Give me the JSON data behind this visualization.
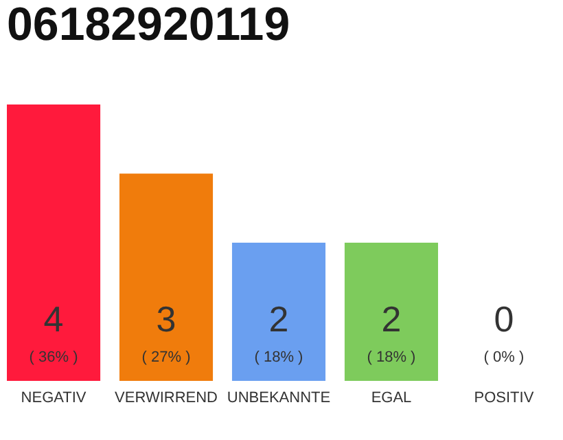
{
  "chart_data": {
    "type": "bar",
    "title": "06182920119",
    "categories": [
      "NEGATIV",
      "VERWIRREND",
      "UNBEKANNTE",
      "EGAL",
      "POSITIV"
    ],
    "values": [
      4,
      3,
      2,
      2,
      0
    ],
    "colors": [
      "#ff1a3c",
      "#f07c0c",
      "#6a9ff0",
      "#7ecb5c",
      "#cccccc"
    ],
    "data_labels": true,
    "tick_labels": "x",
    "grid": false,
    "annotations": [
      "( 36% )",
      "( 27% )",
      "( 18% )",
      "( 18% )",
      "( 0% )"
    ]
  }
}
